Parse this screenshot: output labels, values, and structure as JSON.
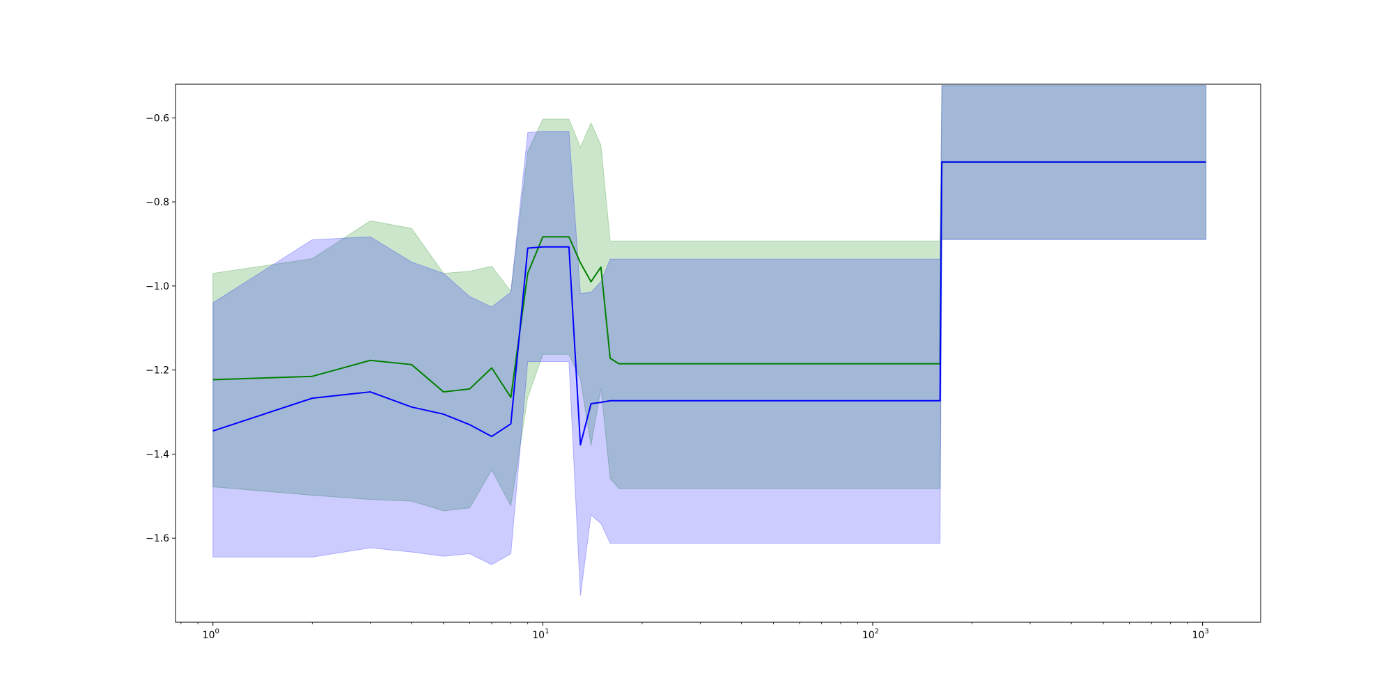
{
  "chart_data": {
    "type": "line",
    "title": "",
    "xlabel": "",
    "ylabel": "",
    "xscale": "log",
    "xlim": [
      0.77,
      1500
    ],
    "ylim": [
      -1.8,
      -0.52
    ],
    "grid": false,
    "x_ticks": [
      {
        "value": 1,
        "base": "10",
        "exp": "0"
      },
      {
        "value": 10,
        "base": "10",
        "exp": "1"
      },
      {
        "value": 100,
        "base": "10",
        "exp": "2"
      },
      {
        "value": 1000,
        "base": "10",
        "exp": "3"
      }
    ],
    "y_ticks": [
      {
        "value": -0.6,
        "label": "−0.6"
      },
      {
        "value": -0.8,
        "label": "−0.8"
      },
      {
        "value": -1.0,
        "label": "−1.0"
      },
      {
        "value": -1.2,
        "label": "−1.2"
      },
      {
        "value": -1.4,
        "label": "−1.4"
      },
      {
        "value": -1.6,
        "label": "−1.6"
      }
    ],
    "series": [
      {
        "color": "#008000",
        "band_color": "#008000",
        "band_opacity": 0.2,
        "x": [
          1,
          2,
          3,
          4,
          5,
          6,
          7,
          8,
          9,
          10,
          12,
          13,
          14,
          15,
          16,
          17,
          160,
          162,
          1024
        ],
        "mean": [
          -1.223,
          -1.215,
          -1.177,
          -1.187,
          -1.252,
          -1.245,
          -1.195,
          -1.265,
          -0.97,
          -0.883,
          -0.883,
          -0.945,
          -0.99,
          -0.955,
          -1.172,
          -1.185,
          -1.185,
          -0.705,
          -0.705
        ],
        "upper": [
          -0.97,
          -0.935,
          -0.845,
          -0.863,
          -0.97,
          -0.965,
          -0.953,
          -1.013,
          -0.68,
          -0.603,
          -0.603,
          -0.67,
          -0.612,
          -0.665,
          -0.893,
          -0.893,
          -0.893,
          -0.523,
          -0.523
        ],
        "lower": [
          -1.478,
          -1.498,
          -1.508,
          -1.512,
          -1.535,
          -1.528,
          -1.438,
          -1.523,
          -1.265,
          -1.163,
          -1.163,
          -1.22,
          -1.38,
          -1.243,
          -1.458,
          -1.482,
          -1.482,
          -0.888,
          -0.888
        ]
      },
      {
        "color": "#0000ff",
        "band_color": "#0000ff",
        "band_opacity": 0.2,
        "x": [
          1,
          2,
          3,
          4,
          5,
          6,
          7,
          8,
          9,
          10,
          12,
          13,
          14,
          15,
          16,
          17,
          160,
          162,
          1024
        ],
        "mean": [
          -1.345,
          -1.267,
          -1.252,
          -1.288,
          -1.305,
          -1.33,
          -1.358,
          -1.328,
          -0.91,
          -0.907,
          -0.907,
          -1.378,
          -1.28,
          -1.277,
          -1.273,
          -1.273,
          -1.273,
          -0.705,
          -0.705
        ],
        "upper": [
          -1.04,
          -0.89,
          -0.883,
          -0.943,
          -0.97,
          -1.025,
          -1.05,
          -1.015,
          -0.635,
          -0.632,
          -0.632,
          -1.018,
          -1.015,
          -0.99,
          -0.936,
          -0.936,
          -0.936,
          -0.523,
          -0.523
        ],
        "lower": [
          -1.645,
          -1.645,
          -1.623,
          -1.633,
          -1.643,
          -1.637,
          -1.663,
          -1.637,
          -1.18,
          -1.18,
          -1.18,
          -1.737,
          -1.545,
          -1.565,
          -1.612,
          -1.612,
          -1.612,
          -0.89,
          -0.89
        ]
      }
    ]
  }
}
